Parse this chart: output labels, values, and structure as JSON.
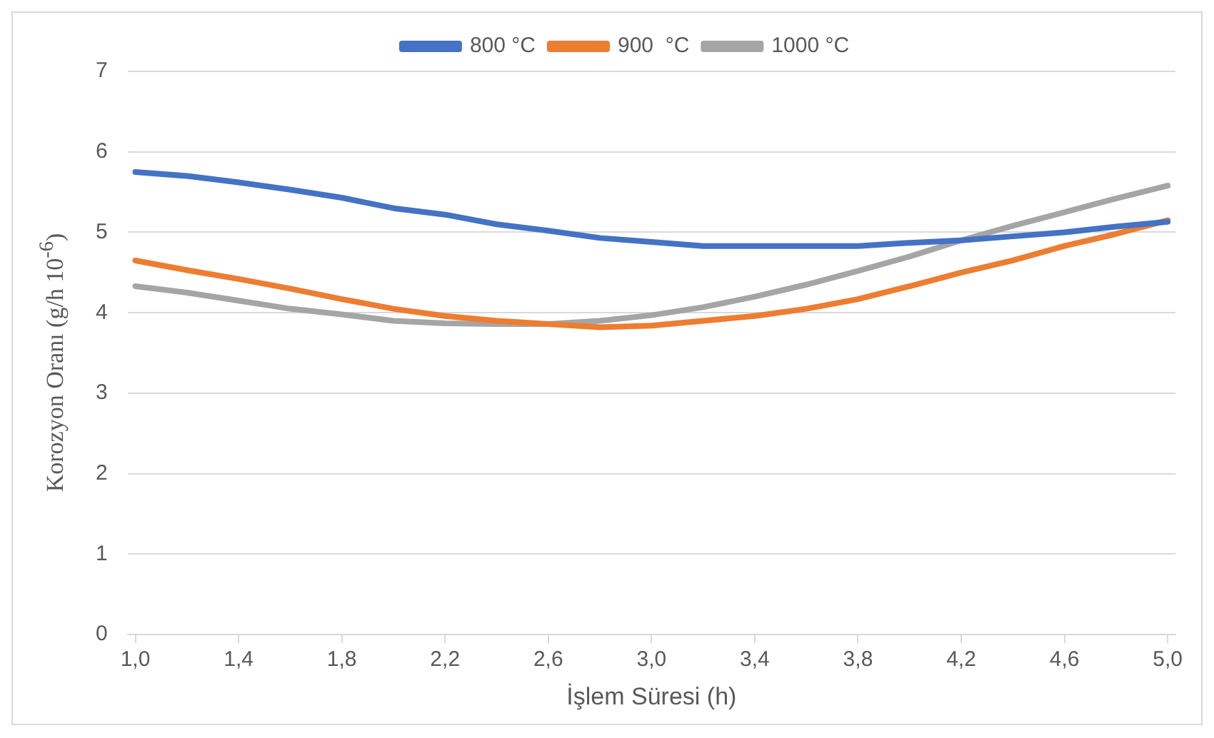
{
  "chart_data": {
    "type": "line",
    "xlabel": "İşlem Süresi (h)",
    "ylabel": "Korozyon Oranı (g/h 10$^{-6}$)",
    "x": [
      1.0,
      1.2,
      1.4,
      1.6,
      1.8,
      2.0,
      2.2,
      2.4,
      2.6,
      2.8,
      3.0,
      3.2,
      3.4,
      3.6,
      3.8,
      4.0,
      4.2,
      4.4,
      4.6,
      4.8,
      5.0
    ],
    "series": [
      {
        "name": "800 °C",
        "color": "#4472c4",
        "values": [
          5.75,
          5.7,
          5.62,
          5.53,
          5.43,
          5.3,
          5.22,
          5.1,
          5.02,
          4.93,
          4.88,
          4.83,
          4.83,
          4.83,
          4.83,
          4.87,
          4.9,
          4.95,
          5.0,
          5.07,
          5.13
        ]
      },
      {
        "name": "900  °C",
        "color": "#ed7d31",
        "values": [
          4.65,
          4.53,
          4.42,
          4.3,
          4.17,
          4.05,
          3.96,
          3.9,
          3.86,
          3.82,
          3.84,
          3.9,
          3.96,
          4.05,
          4.17,
          4.33,
          4.5,
          4.65,
          4.83,
          4.98,
          5.15
        ]
      },
      {
        "name": "1000 °C",
        "color": "#a5a5a5",
        "values": [
          4.33,
          4.25,
          4.15,
          4.05,
          3.98,
          3.9,
          3.87,
          3.86,
          3.86,
          3.9,
          3.97,
          4.07,
          4.2,
          4.35,
          4.52,
          4.7,
          4.9,
          5.08,
          5.25,
          5.42,
          5.58
        ]
      }
    ],
    "xlim": [
      0.97,
      5.03
    ],
    "xticks": [
      {
        "value": 1.0,
        "label": "1,0"
      },
      {
        "value": 1.4,
        "label": "1,4"
      },
      {
        "value": 1.8,
        "label": "1,8"
      },
      {
        "value": 2.2,
        "label": "2,2"
      },
      {
        "value": 2.6,
        "label": "2,6"
      },
      {
        "value": 3.0,
        "label": "3,0"
      },
      {
        "value": 3.4,
        "label": "3,4"
      },
      {
        "value": 3.8,
        "label": "3,8"
      },
      {
        "value": 4.2,
        "label": "4,2"
      },
      {
        "value": 4.6,
        "label": "4,6"
      },
      {
        "value": 5.0,
        "label": "5,0"
      }
    ],
    "ylim": [
      0,
      7
    ],
    "yticks": [
      0,
      1,
      2,
      3,
      4,
      5,
      6,
      7
    ],
    "grid": "y",
    "legend": "top",
    "marker": "none",
    "line_style": "solid"
  }
}
